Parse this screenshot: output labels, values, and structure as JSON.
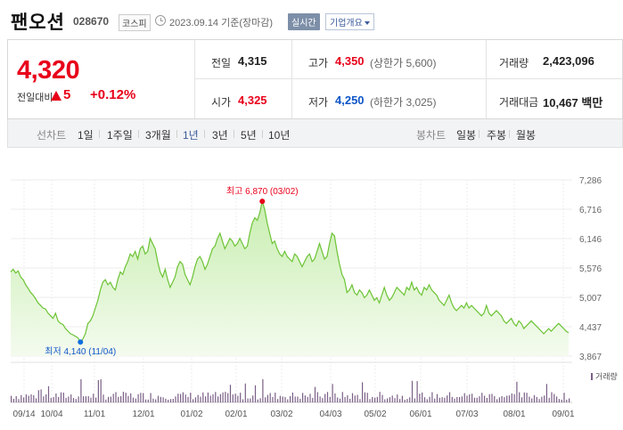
{
  "header": {
    "stock_name": "팬오션",
    "stock_code": "028670",
    "market": "코스피",
    "date_text": "2023.09.14 기준(장마감)",
    "realtime_label": "실시간",
    "company_label": "기업개요"
  },
  "price": {
    "current": "4,320",
    "change_label": "전일대비",
    "change_value": "5",
    "change_pct": "+0.12%"
  },
  "stats": {
    "prev_label": "전일",
    "prev_value": "4,315",
    "high_label": "고가",
    "high_value": "4,350",
    "upper_limit": "(상한가 5,600)",
    "volume_label": "거래량",
    "volume_value": "2,423,096",
    "open_label": "시가",
    "open_value": "4,325",
    "low_label": "저가",
    "low_value": "4,250",
    "lower_limit": "(하한가 3,025)",
    "amount_label": "거래대금",
    "amount_value": "10,467 백만"
  },
  "tabs": {
    "line_chart": "선차트",
    "periods": [
      "1일",
      "1주일",
      "3개월",
      "1년",
      "3년",
      "5년",
      "10년"
    ],
    "active_period": "1년",
    "candle_chart": "봉차트",
    "candle_periods": [
      "일봉",
      "주봉",
      "월봉"
    ]
  },
  "colors": {
    "up": "#e8001a",
    "down": "#0f56c8",
    "line": "#6cc335",
    "fill_top": "#c8eeb0",
    "volume_bar": "#7a5f86"
  },
  "chart_data": {
    "type": "area",
    "y_ticks": [
      "7,286",
      "6,716",
      "6,146",
      "5,576",
      "5,007",
      "4,437",
      "3,867"
    ],
    "ylim": [
      3867,
      7286
    ],
    "x_ticks": [
      "09/14",
      "10/04",
      "11/01",
      "12/01",
      "01/02",
      "02/01",
      "03/02",
      "04/03",
      "05/02",
      "06/01",
      "07/03",
      "08/01",
      "09/01"
    ],
    "max_label": "최고 6,870 (03/02)",
    "min_label": "최저 4,140 (11/04)",
    "volume_legend": "거래량",
    "values": [
      5500,
      5550,
      5480,
      5520,
      5400,
      5350,
      5250,
      5180,
      5100,
      5050,
      4980,
      4900,
      4850,
      4800,
      4780,
      4700,
      4650,
      4600,
      4700,
      4550,
      4500,
      4480,
      4400,
      4350,
      4300,
      4280,
      4250,
      4220,
      4140,
      4200,
      4300,
      4500,
      4550,
      4650,
      4800,
      4950,
      5150,
      5300,
      5350,
      5250,
      5300,
      5200,
      5150,
      5350,
      5500,
      5450,
      5600,
      5700,
      5850,
      5800,
      5900,
      5750,
      5950,
      6000,
      5850,
      5900,
      6150,
      6050,
      5950,
      5700,
      5500,
      5400,
      5550,
      5350,
      5200,
      5300,
      5400,
      5600,
      5700,
      5650,
      5450,
      5350,
      5250,
      5400,
      5600,
      5750,
      5800,
      5700,
      5550,
      5650,
      5800,
      5950,
      6000,
      6150,
      6250,
      6100,
      5950,
      6050,
      6150,
      6100,
      6000,
      6050,
      6150,
      6050,
      5950,
      6000,
      6250,
      6450,
      6550,
      6500,
      6650,
      6870,
      6700,
      6450,
      6250,
      6050,
      6100,
      5950,
      5850,
      5800,
      5900,
      5800,
      5750,
      5700,
      5850,
      5800,
      5700,
      5600,
      5700,
      5800,
      5850,
      5700,
      5750,
      5900,
      6050,
      5900,
      5750,
      5800,
      6050,
      6250,
      6200,
      5900,
      5650,
      5450,
      5350,
      5100,
      5150,
      5250,
      5100,
      5050,
      5150,
      5100,
      5000,
      5050,
      5150,
      5050,
      4950,
      5000,
      4900,
      5050,
      5200,
      5050,
      4950,
      5000,
      5100,
      5200,
      5150,
      5100,
      5050,
      5200,
      5150,
      5300,
      5150,
      5200,
      5100,
      5050,
      5200,
      5150,
      5250,
      5150,
      5100,
      5050,
      4950,
      4900,
      4850,
      4950,
      5050,
      4900,
      4800,
      4750,
      4800,
      4850,
      4800,
      4900,
      4800,
      4850,
      4800,
      4750,
      4700,
      4650,
      4700,
      4850,
      4700,
      4650,
      4700,
      4750,
      4700,
      4650,
      4550,
      4500,
      4550,
      4600,
      4500,
      4450,
      4550,
      4500,
      4400,
      4450,
      4500,
      4550,
      4500,
      4450,
      4400,
      4350,
      4300,
      4350,
      4400,
      4350,
      4400,
      4450,
      4500,
      4450,
      4400,
      4350,
      4320
    ]
  }
}
